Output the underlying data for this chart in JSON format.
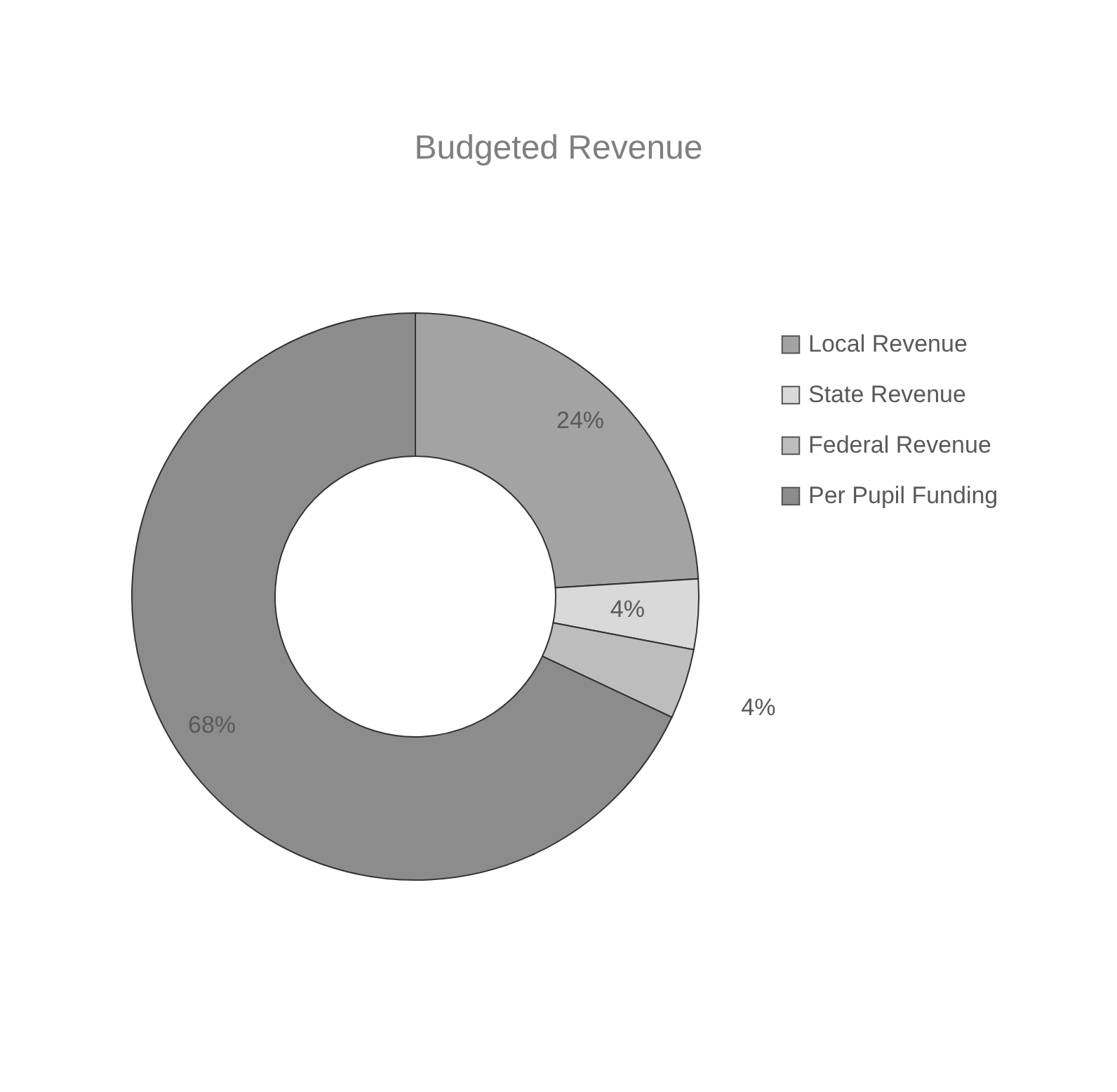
{
  "chart_data": {
    "type": "donut",
    "title": "Budgeted Revenue",
    "categories": [
      "Local Revenue",
      "State Revenue",
      "Federal Revenue",
      "Per Pupil Funding"
    ],
    "values": [
      24,
      4,
      4,
      68
    ],
    "colors": [
      "#a3a3a3",
      "#d9d9d9",
      "#bdbdbd",
      "#8c8c8c"
    ],
    "value_labels": [
      "24%",
      "4%",
      "4%",
      "68%"
    ],
    "legend": "right"
  }
}
